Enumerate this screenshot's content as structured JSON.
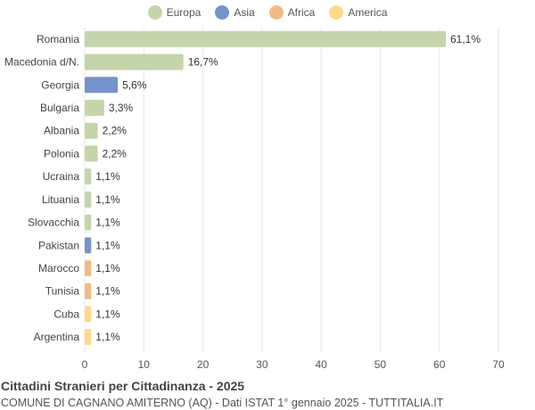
{
  "chart_data": {
    "type": "bar",
    "orientation": "horizontal",
    "title": "Cittadini Stranieri per Cittadinanza - 2025",
    "subtitle": "COMUNE DI CAGNANO AMITERNO (AQ) - Dati ISTAT 1° gennaio 2025 - TUTTITALIA.IT",
    "legend_position": "top-center",
    "grid": true,
    "xlim": [
      0,
      70
    ],
    "x_ticks": [
      "0",
      "10",
      "20",
      "30",
      "40",
      "50",
      "60",
      "70"
    ],
    "legend": [
      {
        "name": "Europa",
        "color": "#c3d5a9"
      },
      {
        "name": "Asia",
        "color": "#7592cc"
      },
      {
        "name": "Africa",
        "color": "#f2bb85"
      },
      {
        "name": "America",
        "color": "#fdd98a"
      }
    ],
    "categories": [
      "Romania",
      "Macedonia d/N.",
      "Georgia",
      "Bulgaria",
      "Albania",
      "Polonia",
      "Ucraina",
      "Lituania",
      "Slovacchia",
      "Pakistan",
      "Marocco",
      "Tunisia",
      "Cuba",
      "Argentina"
    ],
    "values": [
      61.1,
      16.7,
      5.6,
      3.3,
      2.2,
      2.2,
      1.1,
      1.1,
      1.1,
      1.1,
      1.1,
      1.1,
      1.1,
      1.1
    ],
    "value_labels": [
      "61,1%",
      "16,7%",
      "5,6%",
      "3,3%",
      "2,2%",
      "2,2%",
      "1,1%",
      "1,1%",
      "1,1%",
      "1,1%",
      "1,1%",
      "1,1%",
      "1,1%",
      "1,1%"
    ],
    "groups": [
      "Europa",
      "Europa",
      "Asia",
      "Europa",
      "Europa",
      "Europa",
      "Europa",
      "Europa",
      "Europa",
      "Asia",
      "Africa",
      "Africa",
      "America",
      "America"
    ]
  }
}
